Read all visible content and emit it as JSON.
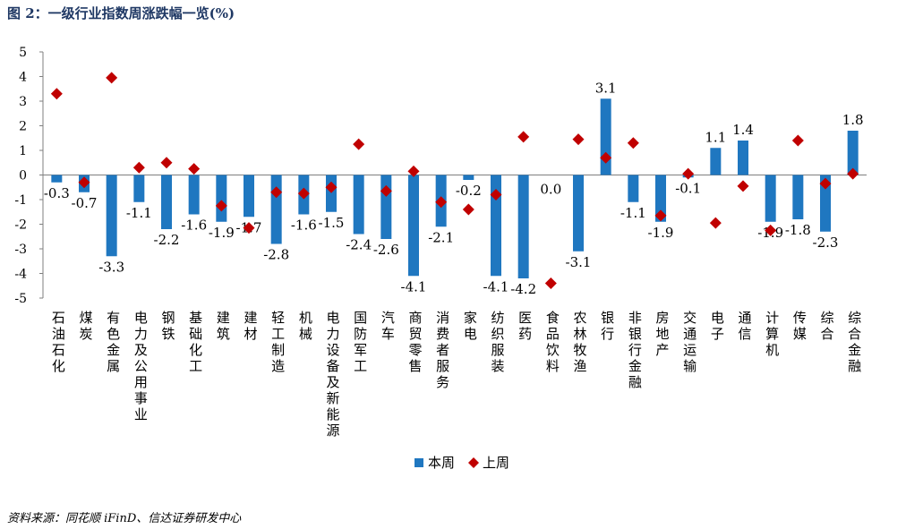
{
  "page": {
    "title": "图 2：一级行业指数周涨跌幅一览(%)",
    "source": "资料来源：同花顺 iFinD、信达证券研发中心"
  },
  "chart_data": {
    "type": "bar",
    "categories": [
      "石油石化",
      "煤炭",
      "有色金属",
      "电力及公用事业",
      "钢铁",
      "基础化工",
      "建筑",
      "建材",
      "轻工制造",
      "机械",
      "电力设备及新能源",
      "国防军工",
      "汽车",
      "商贸零售",
      "消费者服务",
      "家电",
      "纺织服装",
      "医药",
      "食品饮料",
      "农林牧渔",
      "银行",
      "非银行金融",
      "房地产",
      "交通运输",
      "电子",
      "通信",
      "计算机",
      "传媒",
      "综合",
      "综合金融"
    ],
    "series": [
      {
        "name": "本周",
        "type": "bar",
        "color": "#1F77C0",
        "values": [
          -0.3,
          -0.7,
          -3.3,
          -1.1,
          -2.2,
          -1.6,
          -1.9,
          -1.7,
          -2.8,
          -1.6,
          -1.5,
          -2.4,
          -2.6,
          -4.1,
          -2.1,
          -0.2,
          -4.1,
          -4.2,
          0.0,
          -3.1,
          3.1,
          -1.1,
          -1.9,
          -0.1,
          1.1,
          1.4,
          -1.9,
          -1.8,
          -2.3,
          1.8
        ]
      },
      {
        "name": "上周",
        "type": "scatter",
        "marker": "diamond",
        "color": "#C00000",
        "values": [
          3.3,
          -0.3,
          3.95,
          0.3,
          0.5,
          0.25,
          -1.25,
          -2.15,
          -0.7,
          -0.75,
          -0.5,
          1.25,
          -0.65,
          0.15,
          -1.1,
          -1.4,
          -0.8,
          1.55,
          -4.4,
          1.45,
          0.7,
          1.3,
          -1.65,
          0.05,
          -1.95,
          -0.45,
          -2.25,
          1.4,
          -0.35,
          0.05
        ]
      }
    ],
    "data_labels": [
      "-0.3",
      "-0.7",
      "-3.3",
      "-1.1",
      "-2.2",
      "-1.6",
      "-1.9",
      "-1.7",
      "-2.8",
      "-1.6",
      "-1.5",
      "-2.4",
      "-2.6",
      "-4.1",
      "-2.1",
      "-0.2",
      "-4.1",
      "-4.2",
      "0.0",
      "-3.1",
      "3.1",
      "-1.1",
      "-1.9",
      "-0.1",
      "1.1",
      "1.4",
      "-1.9",
      "-1.8",
      "-2.3",
      "1.8"
    ],
    "yticks": [
      "5",
      "4",
      "3",
      "2",
      "1",
      "0",
      "-1",
      "-2",
      "-3",
      "-4",
      "-5"
    ],
    "ylim": [
      -5,
      5
    ],
    "grid": false,
    "legend": "bottom-center"
  }
}
